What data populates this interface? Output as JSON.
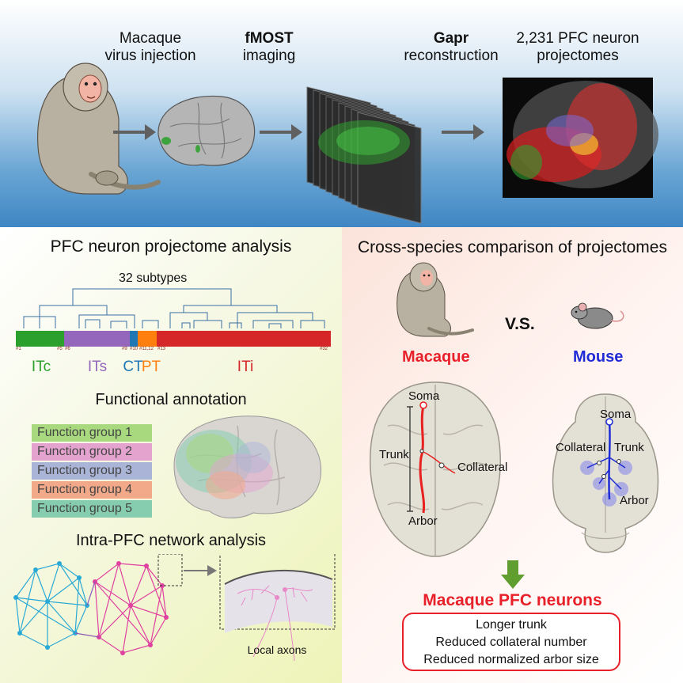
{
  "top": {
    "steps": [
      {
        "line1": "Macaque",
        "line2": "virus injection"
      },
      {
        "line1": "fMOST",
        "line2": "imaging"
      },
      {
        "line1": "Gapr",
        "line2": "reconstruction"
      },
      {
        "line1": "2,231 PFC neuron",
        "line2": "projectomes"
      }
    ]
  },
  "left": {
    "title": "PFC neuron projectome analysis",
    "dendrogram_label": "32 subtypes",
    "bar_segments": [
      {
        "label": "ITc",
        "color": "#2ca02c",
        "start_tag": "#1",
        "end_tag": "#5"
      },
      {
        "label": "ITs",
        "color": "#9467bd",
        "start_tag": "#6",
        "end_tag": "#9"
      },
      {
        "label": "CT",
        "color": "#1f77b4",
        "start_tag": "#10",
        "end_tag": ""
      },
      {
        "label": "PT",
        "color": "#ff7f0e",
        "start_tag": "#11,12",
        "end_tag": ""
      },
      {
        "label": "ITi",
        "color": "#d62728",
        "start_tag": "#13",
        "end_tag": "#32"
      }
    ],
    "functional_title": "Functional annotation",
    "function_groups": [
      {
        "label": "Function group 1",
        "color": "#a8d97f"
      },
      {
        "label": "Function group 2",
        "color": "#e4a3cf"
      },
      {
        "label": "Function group 3",
        "color": "#a9b4d6"
      },
      {
        "label": "Function group 4",
        "color": "#f2a98a"
      },
      {
        "label": "Function group 5",
        "color": "#86cdb0"
      }
    ],
    "network_title": "Intra-PFC network analysis",
    "local_axons": "Local axons"
  },
  "right": {
    "title": "Cross-species comparison of projectomes",
    "vs": "V.S.",
    "macaque": "Macaque",
    "mouse": "Mouse",
    "macaque_labels": {
      "soma": "Soma",
      "trunk": "Trunk",
      "collateral": "Collateral",
      "arbor": "Arbor"
    },
    "mouse_labels": {
      "soma": "Soma",
      "trunk": "Trunk",
      "collateral": "Collateral",
      "arbor": "Arbor"
    },
    "conclusion_title": "Macaque PFC neurons",
    "findings": [
      "Longer trunk",
      "Reduced collateral number",
      "Reduced normalized arbor size"
    ]
  }
}
